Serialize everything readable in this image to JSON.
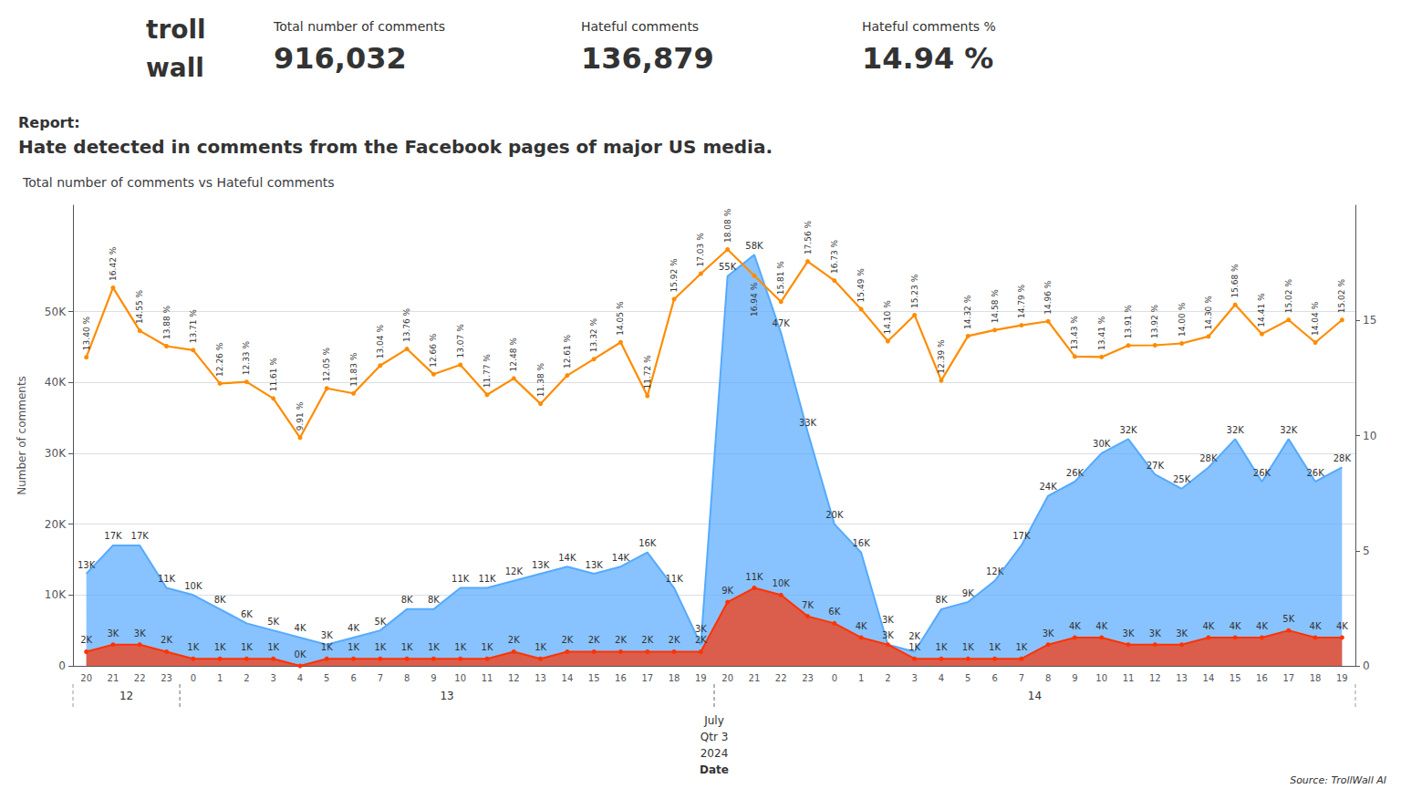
{
  "chart_data": {
    "type": "line",
    "title": "Total number of comments vs Hateful comments",
    "annotations": [
      "troll",
      "wall",
      "Total number of comments",
      "916,032",
      "Hateful comments",
      "136,879",
      "Hateful comments %",
      "14.94 %",
      "Report:",
      "Hate detected in comments from the Facebook pages of major US media.",
      "Source: TrollWall AI"
    ],
    "ylabel": "Number of comments",
    "xlabel": [
      "July",
      "Qtr 3",
      "2024",
      "Date"
    ],
    "categories": [
      "20",
      "21",
      "22",
      "23",
      "0",
      "1",
      "2",
      "3",
      "4",
      "5",
      "6",
      "7",
      "8",
      "9",
      "10",
      "11",
      "12",
      "13",
      "14",
      "15",
      "16",
      "17",
      "18",
      "19",
      "20",
      "21",
      "22",
      "23",
      "0",
      "1",
      "2",
      "3",
      "4",
      "5",
      "6",
      "7",
      "8",
      "9",
      "10",
      "11",
      "12",
      "13",
      "14",
      "15",
      "16",
      "17",
      "18",
      "19"
    ],
    "category_groups": [
      {
        "label": "12",
        "start": 0,
        "end": 3
      },
      {
        "label": "13",
        "start": 4,
        "end": 23
      },
      {
        "label": "14",
        "start": 24,
        "end": 47
      }
    ],
    "ylim": [
      0,
      65000
    ],
    "yticks": [
      0,
      {
        "value": 10000,
        "label": "10K"
      },
      {
        "value": 20000,
        "label": "20K"
      },
      {
        "value": 30000,
        "label": "30K"
      },
      {
        "value": 40000,
        "label": "40K"
      },
      {
        "value": 50000,
        "label": "50K"
      }
    ],
    "y2lim": [
      0,
      20
    ],
    "y2ticks": [
      0,
      5,
      10,
      15
    ],
    "grid": true,
    "stacked": false,
    "data_labels": true,
    "series": [
      {
        "name": "Total number of comments",
        "type": "area",
        "color": "#55aaff",
        "marker": "none",
        "values": [
          13000,
          17000,
          17000,
          11000,
          10000,
          8000,
          6000,
          5000,
          4000,
          3000,
          4000,
          5000,
          8000,
          8000,
          11000,
          11000,
          12000,
          13000,
          14000,
          13000,
          14000,
          16000,
          11000,
          3000,
          55000,
          58000,
          47000,
          33000,
          20000,
          16000,
          3000,
          2000,
          8000,
          9000,
          12000,
          17000,
          24000,
          26000,
          30000,
          32000,
          27000,
          25000,
          28000,
          32000,
          26000,
          32000,
          26000,
          28000
        ],
        "value_labels": [
          "13K",
          "17K",
          "17K",
          "11K",
          "10K",
          "8K",
          "6K",
          "5K",
          "4K",
          "3K",
          "4K",
          "5K",
          "8K",
          "8K",
          "11K",
          "11K",
          "12K",
          "13K",
          "14K",
          "13K",
          "14K",
          "16K",
          "11K",
          "3K",
          "55K",
          "58K",
          "47K",
          "33K",
          "20K",
          "16K",
          "3K",
          "2K",
          "8K",
          "9K",
          "12K",
          "17K",
          "24K",
          "26K",
          "30K",
          "32K",
          "27K",
          "25K",
          "28K",
          "32K",
          "26K",
          "32K",
          "26K",
          "28K"
        ]
      },
      {
        "name": "Hateful comments",
        "type": "area",
        "color": "#ff3300",
        "marker": "o",
        "values": [
          2000,
          3000,
          3000,
          2000,
          1000,
          1000,
          1000,
          1000,
          0,
          1000,
          1000,
          1000,
          1000,
          1000,
          1000,
          1000,
          2000,
          1000,
          2000,
          2000,
          2000,
          2000,
          2000,
          2000,
          9000,
          11000,
          10000,
          7000,
          6000,
          4000,
          3000,
          1000,
          1000,
          1000,
          1000,
          1000,
          3000,
          4000,
          4000,
          3000,
          3000,
          3000,
          4000,
          4000,
          4000,
          5000,
          4000,
          4000
        ],
        "value_labels": [
          "2K",
          "3K",
          "3K",
          "2K",
          "1K",
          "1K",
          "1K",
          "1K",
          "0K",
          "1K",
          "1K",
          "1K",
          "1K",
          "1K",
          "1K",
          "1K",
          "2K",
          "1K",
          "2K",
          "2K",
          "2K",
          "2K",
          "2K",
          "2K",
          "9K",
          "11K",
          "10K",
          "7K",
          "6K",
          "4K",
          "3K",
          "1K",
          "1K",
          "1K",
          "1K",
          "1K",
          "3K",
          "4K",
          "4K",
          "3K",
          "3K",
          "3K",
          "4K",
          "4K",
          "4K",
          "5K",
          "4K",
          "4K"
        ]
      },
      {
        "name": "Hateful comments %",
        "type": "line",
        "axis": "y2",
        "color": "#ff8c00",
        "marker": "o",
        "values": [
          13.4,
          16.42,
          14.55,
          13.88,
          13.71,
          12.26,
          12.33,
          11.61,
          9.91,
          12.05,
          11.83,
          13.04,
          13.76,
          12.66,
          13.07,
          11.77,
          12.48,
          11.38,
          12.61,
          13.32,
          14.05,
          11.72,
          15.92,
          17.03,
          18.08,
          16.94,
          15.81,
          17.56,
          16.73,
          15.49,
          14.1,
          15.23,
          12.39,
          14.32,
          14.58,
          14.79,
          14.96,
          13.43,
          13.41,
          13.91,
          13.92,
          14.0,
          14.3,
          15.68,
          14.41,
          15.02,
          14.04,
          15.02
        ],
        "value_labels": [
          "13.40 %",
          "16.42 %",
          "14.55 %",
          "13.88 %",
          "13.71 %",
          "12.26 %",
          "12.33 %",
          "11.61 %",
          "9.91 %",
          "12.05 %",
          "11.83 %",
          "13.04 %",
          "13.76 %",
          "12.66 %",
          "13.07 %",
          "11.77 %",
          "12.48 %",
          "11.38 %",
          "12.61 %",
          "13.32 %",
          "14.05 %",
          "11.72 %",
          "15.92 %",
          "17.03 %",
          "18.08 %",
          "16.94 %",
          "15.81 %",
          "17.56 %",
          "16.73 %",
          "15.49 %",
          "14.10 %",
          "15.23 %",
          "12.39 %",
          "14.32 %",
          "14.58 %",
          "14.79 %",
          "14.96 %",
          "13.43 %",
          "13.41 %",
          "13.91 %",
          "13.92 %",
          "14.00 %",
          "14.30 %",
          "15.68 %",
          "14.41 %",
          "15.02 %",
          "14.04 %",
          "15.02 %"
        ]
      }
    ]
  }
}
